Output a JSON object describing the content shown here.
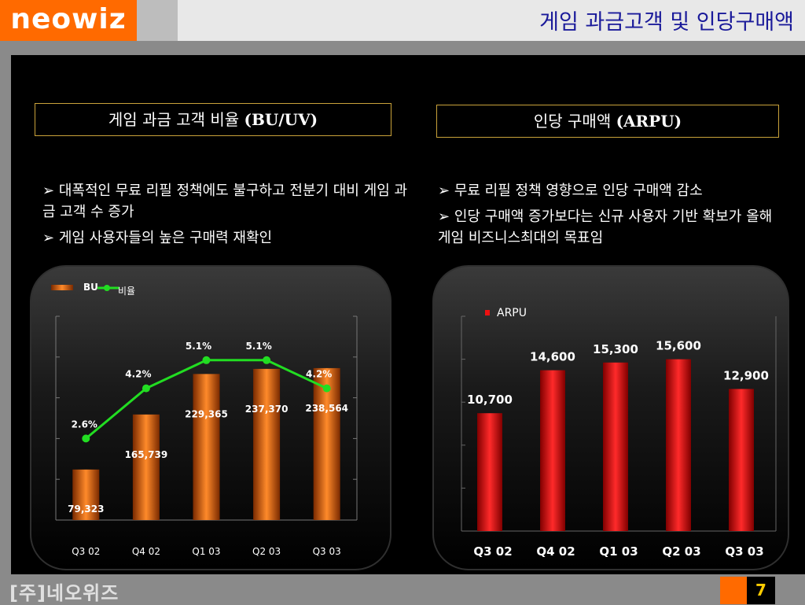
{
  "header": {
    "logo": "neowiz",
    "title": "게임 과금고객 및 인당구매액"
  },
  "left": {
    "box_title": "게임 과금 고객 비율",
    "box_title_abbr": "(BU/UV)",
    "bullets": [
      "대폭적인 무료 리필 정책에도 불구하고 전분기 대비 게임 과금 고객 수  증가",
      "게임 사용자들의 높은 구매력 재확인"
    ]
  },
  "right": {
    "box_title": "인당 구매액",
    "box_title_abbr": "(ARPU)",
    "bullets": [
      "무료 리필 정책 영향으로 인당 구매액 감소",
      "인당 구매액 증가보다는 신규 사용자 기반 확보가 올해 게임 비즈니스최대의 목표임"
    ]
  },
  "bullet_marker": "➢",
  "chart_data": [
    {
      "type": "bar",
      "categories": [
        "Q3 02",
        "Q4 02",
        "Q1 03",
        "Q2 03",
        "Q3 03"
      ],
      "series": [
        {
          "name": "BU",
          "values": [
            79323,
            165739,
            229365,
            237370,
            238564
          ],
          "labels": [
            "79,323",
            "165,739",
            "229,365",
            "237,370",
            "238,564"
          ],
          "color": "#ff7a1a"
        },
        {
          "name": "비율",
          "type": "line",
          "values": [
            2.6,
            4.2,
            5.1,
            5.1,
            4.2
          ],
          "labels": [
            "2.6%",
            "4.2%",
            "5.1%",
            "5.1%",
            "4.2%"
          ],
          "color": "#22dd22"
        }
      ],
      "ylim": [
        0,
        320000
      ],
      "y2lim": [
        0,
        6.5
      ],
      "legend": "top-left"
    },
    {
      "type": "bar",
      "categories": [
        "Q3 02",
        "Q4 02",
        "Q1 03",
        "Q2 03",
        "Q3 03"
      ],
      "series": [
        {
          "name": "ARPU",
          "values": [
            10700,
            14600,
            15300,
            15600,
            12900
          ],
          "labels": [
            "10,700",
            "14,600",
            "15,300",
            "15,600",
            "12,900"
          ],
          "color": "#ee1111"
        }
      ],
      "ylim": [
        0,
        19500
      ],
      "legend": "top-left"
    }
  ],
  "footer": {
    "company": "[주]네오위즈",
    "page": "7"
  }
}
